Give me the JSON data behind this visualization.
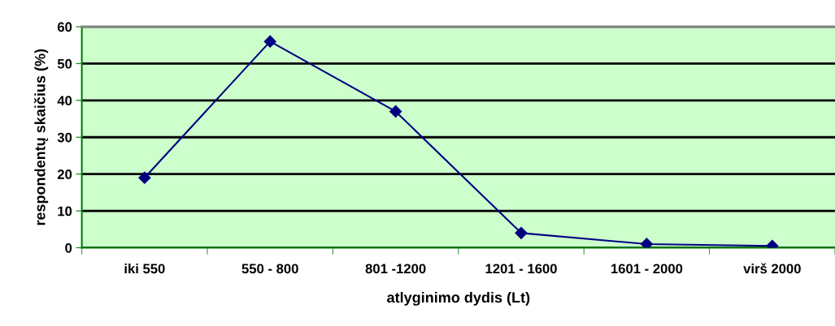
{
  "chart_data": {
    "type": "line",
    "xlabel": "atlyginimo dydis (Lt)",
    "ylabel": "respondentų skaičius (%)",
    "categories": [
      "iki 550",
      "550 - 800",
      "801 -1200",
      "1201 - 1600",
      "1601 - 2000",
      "virš 2000"
    ],
    "series": [
      {
        "color": "#000080",
        "values": [
          19,
          56,
          37,
          4,
          1,
          0.5
        ]
      }
    ],
    "ylim": [
      0,
      60
    ],
    "yticks": [
      0,
      10,
      20,
      30,
      40,
      50,
      60
    ],
    "grid": "y",
    "marker": "diamond",
    "line_style": "solid",
    "legend": false
  }
}
